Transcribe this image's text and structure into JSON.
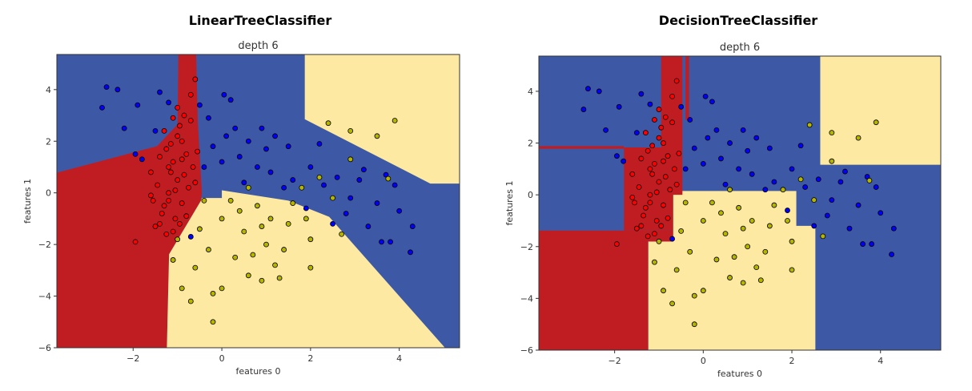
{
  "chart_data": [
    {
      "type": "scatter",
      "title": "LinearTreeClassifier",
      "subtitle": "depth 6",
      "xlabel": "features 0",
      "ylabel": "features 1",
      "xlim": [
        -3.72,
        5.36
      ],
      "ylim": [
        -6,
        5.36
      ],
      "xticks": [
        -2,
        0,
        2,
        4
      ],
      "yticks": [
        -6,
        -4,
        -2,
        0,
        2,
        4
      ],
      "grid": false,
      "region_colors": {
        "red": "#c01d23",
        "yellow": "#fde9a1",
        "blue": "#3d59a5"
      },
      "regions": [
        {
          "class": "red",
          "polygon": [
            [
              -3.72,
              0.78
            ],
            [
              -1.46,
              1.81
            ],
            [
              -1.0,
              2.65
            ],
            [
              -0.98,
              5.36
            ],
            [
              -0.58,
              5.36
            ],
            [
              -0.54,
              2.7
            ],
            [
              -0.45,
              0
            ],
            [
              -0.47,
              -0.3
            ],
            [
              -1.19,
              -2.38
            ],
            [
              -1.24,
              -6
            ],
            [
              -3.72,
              -6
            ]
          ]
        },
        {
          "class": "yellow",
          "polygon": [
            [
              -1.24,
              -6
            ],
            [
              -1.19,
              -2.38
            ],
            [
              -0.47,
              -0.3
            ],
            [
              -0.45,
              -0.2
            ],
            [
              0,
              -0.2
            ],
            [
              0,
              0.1
            ],
            [
              1.5,
              -0.3
            ],
            [
              2.42,
              -0.93
            ],
            [
              5.03,
              -6
            ]
          ]
        },
        {
          "class": "yellow",
          "polygon": [
            [
              1.87,
              5.36
            ],
            [
              1.87,
              2.85
            ],
            [
              4.7,
              0.36
            ],
            [
              5.36,
              0.36
            ],
            [
              5.36,
              5.36
            ]
          ]
        }
      ]
    },
    {
      "type": "scatter",
      "title": "DecisionTreeClassifier",
      "subtitle": "depth 6",
      "xlabel": "features 0",
      "ylabel": "features 1",
      "xlim": [
        -3.71,
        5.36
      ],
      "ylim": [
        -6,
        5.36
      ],
      "xticks": [
        -2,
        0,
        2,
        4
      ],
      "yticks": [
        -6,
        -4,
        -2,
        0,
        2,
        4
      ],
      "grid": false,
      "region_colors": {
        "red": "#c01d23",
        "yellow": "#fde9a1",
        "blue": "#3d59a5"
      },
      "regions": [
        {
          "class": "red",
          "polygon": [
            [
              -3.71,
              -6
            ],
            [
              -1.24,
              -6
            ],
            [
              -1.24,
              -1.38
            ],
            [
              -3.71,
              -1.38
            ]
          ]
        },
        {
          "class": "yellow",
          "polygon": [
            [
              -1.24,
              -6
            ],
            [
              2.53,
              -6
            ],
            [
              2.53,
              -1.2
            ],
            [
              2.1,
              -1.2
            ],
            [
              2.1,
              0.15
            ],
            [
              -0.68,
              0.15
            ],
            [
              -0.68,
              -1.8
            ],
            [
              -1.24,
              -1.8
            ]
          ]
        },
        {
          "class": "red",
          "polygon": [
            [
              -1.24,
              -1.8
            ],
            [
              -0.68,
              -1.8
            ],
            [
              -0.68,
              -1.38
            ],
            [
              -1.24,
              -1.38
            ]
          ]
        },
        {
          "class": "red",
          "polygon": [
            [
              -1.79,
              -1.38
            ],
            [
              -0.68,
              -1.38
            ],
            [
              -0.68,
              0
            ],
            [
              -0.47,
              0
            ],
            [
              -0.47,
              5.36
            ],
            [
              -0.95,
              5.36
            ],
            [
              -0.95,
              1.83
            ],
            [
              -1.79,
              1.83
            ]
          ]
        },
        {
          "class": "red",
          "polygon": [
            [
              -3.71,
              1.78
            ],
            [
              -1.79,
              1.78
            ],
            [
              -1.79,
              1.88
            ],
            [
              -3.71,
              1.88
            ]
          ]
        },
        {
          "class": "red",
          "polygon": [
            [
              -0.4,
              2.9
            ],
            [
              -0.32,
              2.9
            ],
            [
              -0.32,
              5.36
            ],
            [
              -0.4,
              5.36
            ]
          ]
        },
        {
          "class": "yellow",
          "polygon": [
            [
              2.64,
              1.16
            ],
            [
              5.36,
              1.16
            ],
            [
              5.36,
              5.36
            ],
            [
              2.64,
              5.36
            ]
          ]
        }
      ]
    }
  ],
  "points": {
    "colors": {
      "red": "#ff0000",
      "blue": "#0000ff",
      "yellow": "#b5b500"
    },
    "red": [
      [
        -1.0,
        0.5
      ],
      [
        -1.1,
        1.2
      ],
      [
        -0.9,
        2.0
      ],
      [
        -1.2,
        0.0
      ],
      [
        -1.3,
        -0.5
      ],
      [
        -0.8,
        1.5
      ],
      [
        -1.05,
        -1.0
      ],
      [
        -0.95,
        2.6
      ],
      [
        -1.15,
        0.8
      ],
      [
        -1.4,
        -1.2
      ],
      [
        -0.7,
        3.8
      ],
      [
        -0.6,
        4.4
      ],
      [
        -0.85,
        3.0
      ],
      [
        -1.25,
        1.7
      ],
      [
        -1.5,
        -1.3
      ],
      [
        -1.6,
        0.8
      ],
      [
        -1.35,
        -0.8
      ],
      [
        -0.75,
        0.2
      ],
      [
        -0.9,
        -0.4
      ],
      [
        -1.1,
        -1.5
      ],
      [
        -1.0,
        2.2
      ],
      [
        -1.2,
        1.0
      ],
      [
        -1.45,
        0.3
      ],
      [
        -0.65,
        1.0
      ],
      [
        -0.8,
        -0.9
      ],
      [
        -1.95,
        -1.9
      ],
      [
        -1.3,
        2.4
      ],
      [
        -0.9,
        1.3
      ],
      [
        -1.05,
        0.1
      ],
      [
        -1.2,
        -0.3
      ],
      [
        -0.7,
        2.8
      ],
      [
        -1.55,
        -0.3
      ],
      [
        -1.0,
        3.3
      ],
      [
        -0.85,
        0.7
      ],
      [
        -1.15,
        1.9
      ],
      [
        -1.25,
        -1.6
      ],
      [
        -0.6,
        0.4
      ],
      [
        -1.4,
        1.4
      ],
      [
        -0.95,
        -1.2
      ],
      [
        -1.1,
        2.9
      ],
      [
        -0.55,
        1.6
      ],
      [
        -1.6,
        -0.1
      ]
    ],
    "blue": [
      [
        -2.7,
        3.3
      ],
      [
        -2.6,
        4.1
      ],
      [
        -2.35,
        4.0
      ],
      [
        -2.2,
        2.5
      ],
      [
        -1.9,
        3.4
      ],
      [
        -1.95,
        1.5
      ],
      [
        -1.8,
        1.3
      ],
      [
        -1.5,
        2.4
      ],
      [
        -1.4,
        3.9
      ],
      [
        -1.2,
        3.5
      ],
      [
        -0.5,
        3.4
      ],
      [
        -0.3,
        2.9
      ],
      [
        0.05,
        3.8
      ],
      [
        0.2,
        3.6
      ],
      [
        0.3,
        2.5
      ],
      [
        0.6,
        2.0
      ],
      [
        0.9,
        2.5
      ],
      [
        1.2,
        2.2
      ],
      [
        1.5,
        1.8
      ],
      [
        0.0,
        1.2
      ],
      [
        0.4,
        1.4
      ],
      [
        0.8,
        1.0
      ],
      [
        1.1,
        0.8
      ],
      [
        1.6,
        0.5
      ],
      [
        2.0,
        1.0
      ],
      [
        2.3,
        0.3
      ],
      [
        2.6,
        0.6
      ],
      [
        2.9,
        -0.2
      ],
      [
        3.2,
        0.9
      ],
      [
        3.5,
        -0.4
      ],
      [
        3.7,
        0.7
      ],
      [
        3.9,
        0.3
      ],
      [
        4.0,
        -0.7
      ],
      [
        4.3,
        -1.3
      ],
      [
        4.25,
        -2.3
      ],
      [
        3.6,
        -1.9
      ],
      [
        3.8,
        -1.9
      ],
      [
        3.3,
        -1.3
      ],
      [
        2.5,
        -1.2
      ],
      [
        1.9,
        -0.6
      ],
      [
        1.4,
        0.2
      ],
      [
        -0.2,
        1.8
      ],
      [
        0.1,
        2.2
      ],
      [
        1.0,
        1.7
      ],
      [
        2.2,
        1.9
      ],
      [
        -0.4,
        1.0
      ],
      [
        0.5,
        0.4
      ],
      [
        3.1,
        0.5
      ],
      [
        2.8,
        -0.8
      ],
      [
        -0.7,
        -1.7
      ]
    ],
    "yellow": [
      [
        0.0,
        -1.0
      ],
      [
        0.5,
        -1.5
      ],
      [
        1.0,
        -2.0
      ],
      [
        0.3,
        -2.5
      ],
      [
        -0.3,
        -2.2
      ],
      [
        0.8,
        -0.5
      ],
      [
        1.5,
        -1.2
      ],
      [
        2.0,
        -1.8
      ],
      [
        1.2,
        -2.8
      ],
      [
        0.6,
        -3.2
      ],
      [
        -0.2,
        -3.9
      ],
      [
        -0.7,
        -4.2
      ],
      [
        -0.9,
        -3.7
      ],
      [
        -1.1,
        -2.6
      ],
      [
        -0.5,
        -1.4
      ],
      [
        0.2,
        -0.3
      ],
      [
        1.8,
        0.2
      ],
      [
        2.4,
        2.7
      ],
      [
        2.9,
        2.4
      ],
      [
        3.5,
        2.2
      ],
      [
        3.9,
        2.8
      ],
      [
        2.9,
        1.3
      ],
      [
        3.75,
        0.55
      ],
      [
        2.7,
        -1.6
      ],
      [
        2.0,
        -2.9
      ],
      [
        1.3,
        -3.3
      ],
      [
        0.9,
        -3.4
      ],
      [
        -0.2,
        -5.0
      ],
      [
        0.0,
        -3.7
      ],
      [
        -0.6,
        -2.9
      ],
      [
        0.7,
        -2.4
      ],
      [
        1.1,
        -1.0
      ],
      [
        1.6,
        -0.4
      ],
      [
        2.2,
        0.6
      ],
      [
        0.4,
        -0.7
      ],
      [
        -0.4,
        -0.3
      ],
      [
        0.9,
        -1.3
      ],
      [
        1.4,
        -2.2
      ],
      [
        -1.0,
        -1.8
      ],
      [
        2.5,
        -0.2
      ],
      [
        0.6,
        0.2
      ],
      [
        1.9,
        -1.0
      ]
    ]
  }
}
